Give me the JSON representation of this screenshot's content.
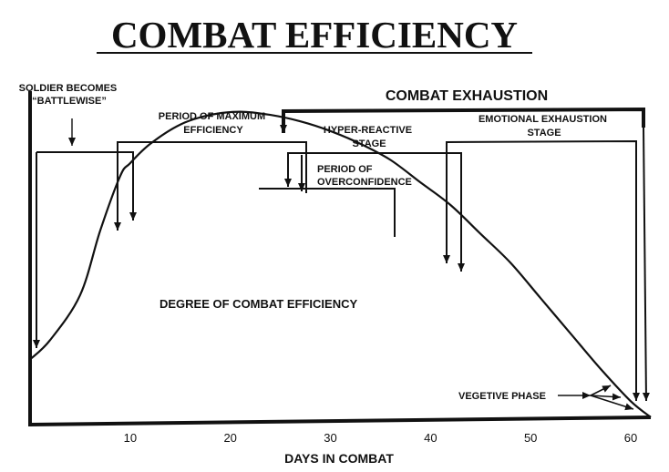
{
  "chart_data": {
    "type": "line",
    "title": "COMBAT EFFICIENCY",
    "xlabel": "DAYS IN COMBAT",
    "ylabel": "",
    "xlim": [
      0,
      62
    ],
    "ylim": [
      0,
      100
    ],
    "xticks": [
      10,
      20,
      30,
      40,
      50,
      60
    ],
    "grid": false,
    "series": [
      {
        "name": "DEGREE OF COMBAT EFFICIENCY",
        "x": [
          0,
          2,
          5,
          7,
          9,
          10,
          12,
          15,
          18,
          21,
          24,
          27,
          30,
          33,
          36,
          39,
          42,
          45,
          48,
          51,
          54,
          57,
          60,
          62
        ],
        "y": [
          20,
          26,
          40,
          60,
          77,
          81,
          87,
          93,
          96,
          97,
          96,
          94,
          91,
          87,
          82,
          75,
          68,
          59,
          50,
          39,
          28,
          17,
          7,
          2
        ]
      }
    ],
    "annotations": {
      "battlewise": "SOLDIER BECOMES \"BATTLEWISE\"",
      "max_efficiency": "PERIOD OF MAXIMUM EFFICIENCY",
      "overconfidence": "PERIOD OF OVERCONFIDENCE",
      "combat_exhaustion": "COMBAT EXHAUSTION",
      "hyper_reactive": "HYPER-REACTIVE STAGE",
      "emotional_exhaustion": "EMOTIONAL EXHAUSTION STAGE",
      "vegetive": "VEGETIVE PHASE"
    }
  }
}
